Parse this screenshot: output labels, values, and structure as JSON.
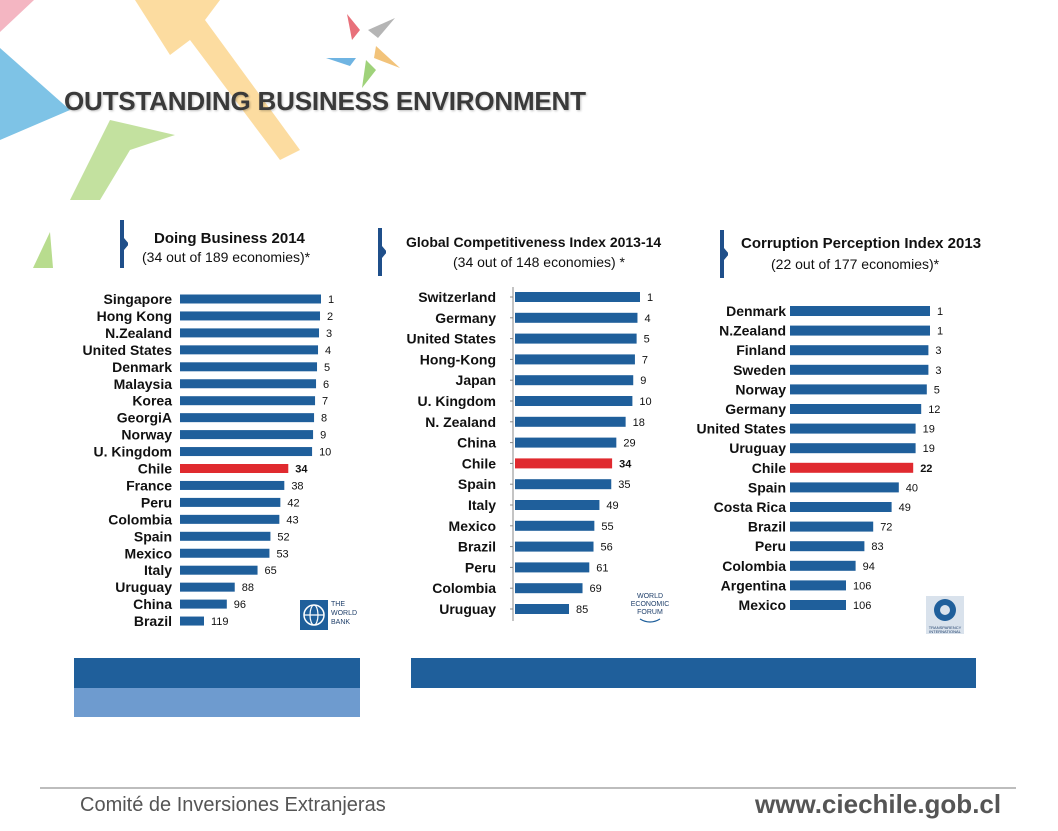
{
  "header": {
    "title": "OUTSTANDING BUSINESS ENVIRONMENT"
  },
  "colors": {
    "bar": "#1f5f9b",
    "highlight": "#e02a2f",
    "bracket": "#1f4f8a",
    "band_dark": "#1f5f9b",
    "band_light": "#6e9bcf"
  },
  "footer": {
    "left": "Comité de Inversiones Extranjeras",
    "right": "www.ciechile.gob.cl"
  },
  "logos": {
    "world_bank": [
      "THE",
      "WORLD",
      "BANK"
    ],
    "wef": [
      "WORLD",
      "ECONOMIC",
      "FORUM"
    ],
    "ti": "TRANSPARENCY INTERNATIONAL"
  },
  "chart_data": [
    {
      "type": "bar",
      "orientation": "horizontal",
      "title": "Doing Business 2014",
      "subtitle": "(34 out of 189 economies)*",
      "highlight": "Chile",
      "categories": [
        "Singapore",
        "Hong Kong",
        "N.Zealand",
        "United States",
        "Denmark",
        "Malaysia",
        "Korea",
        "GeorgiA",
        "Norway",
        "U. Kingdom",
        "Chile",
        "France",
        "Peru",
        "Colombia",
        "Spain",
        "Mexico",
        "Italy",
        "Uruguay",
        "China",
        "Brazil"
      ],
      "values": [
        1,
        2,
        3,
        4,
        5,
        6,
        7,
        8,
        9,
        10,
        34,
        38,
        42,
        43,
        52,
        53,
        65,
        88,
        96,
        119
      ]
    },
    {
      "type": "bar",
      "orientation": "horizontal",
      "title": "Global Competitiveness Index 2013-14",
      "subtitle": "(34 out of 148 economies) *",
      "highlight": "Chile",
      "categories": [
        "Switzerland",
        "Germany",
        "United States",
        "Hong-Kong",
        "Japan",
        "U. Kingdom",
        "N. Zealand",
        "China",
        "Chile",
        "Spain",
        "Italy",
        "Mexico",
        "Brazil",
        "Peru",
        "Colombia",
        "Uruguay"
      ],
      "values": [
        1,
        4,
        5,
        7,
        9,
        10,
        18,
        29,
        34,
        35,
        49,
        55,
        56,
        61,
        69,
        85
      ]
    },
    {
      "type": "bar",
      "orientation": "horizontal",
      "title": "Corruption Perception Index 2013",
      "subtitle": "(22 out of 177 economies)*",
      "highlight": "Chile",
      "categories": [
        "Denmark",
        "N.Zealand",
        "Finland",
        "Sweden",
        "Norway",
        "Germany",
        "United States",
        "Uruguay",
        "Chile",
        "Spain",
        "Costa Rica",
        "Brazil",
        "Peru",
        "Colombia",
        "Argentina",
        "Mexico"
      ],
      "values": [
        1,
        1,
        3,
        3,
        5,
        12,
        19,
        19,
        22,
        40,
        49,
        72,
        83,
        94,
        106,
        106
      ]
    }
  ]
}
